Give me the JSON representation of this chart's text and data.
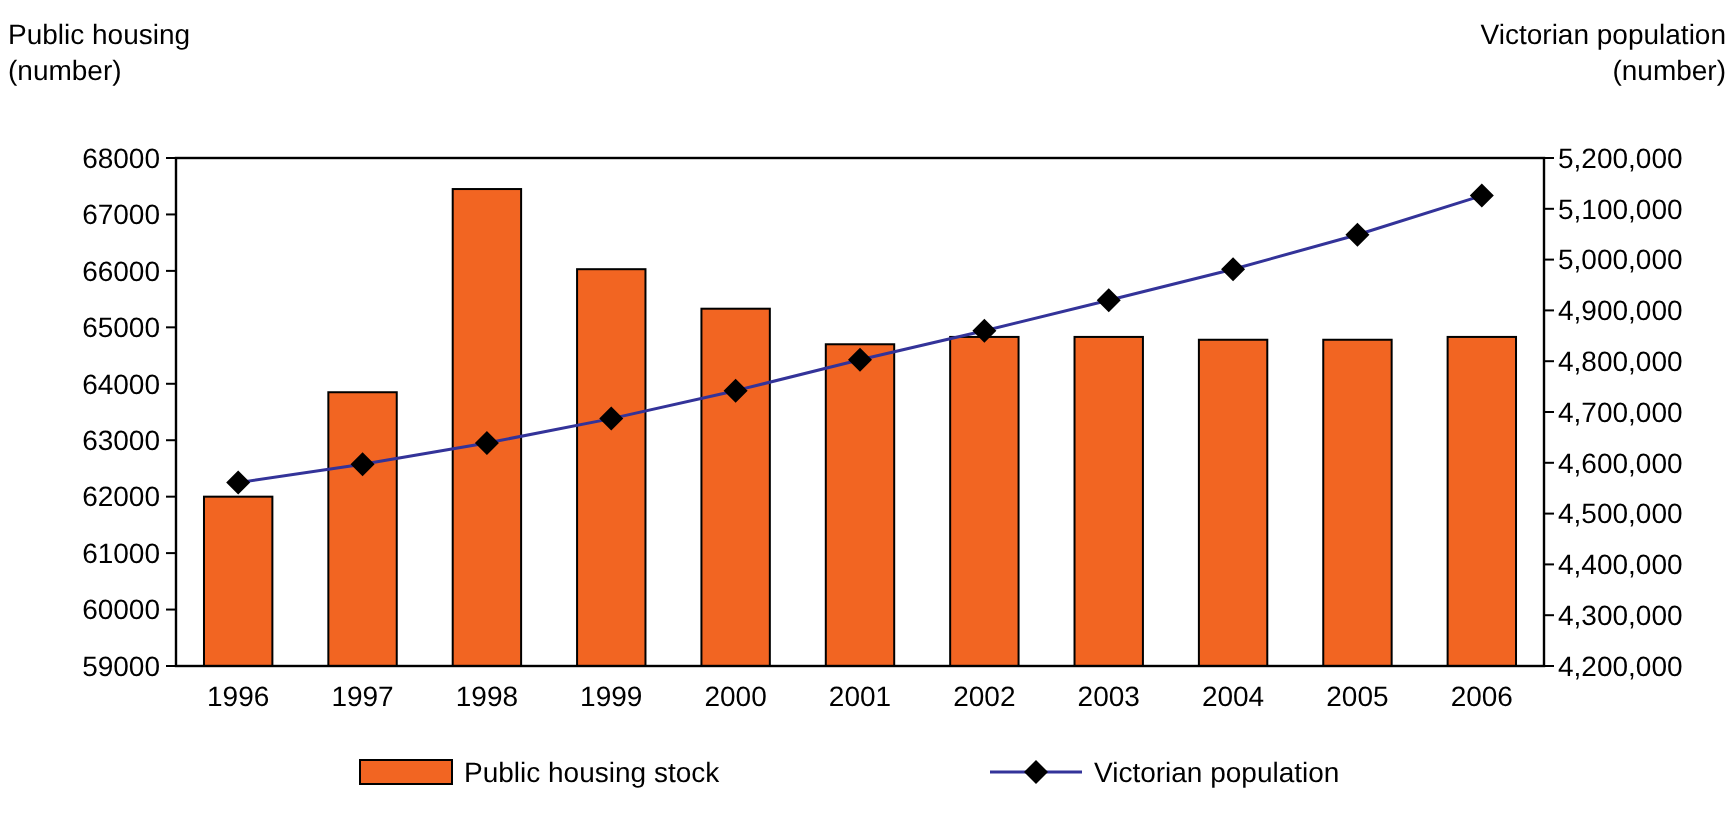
{
  "chart_data": {
    "type": "bar",
    "categories": [
      "1996",
      "1997",
      "1998",
      "1999",
      "2000",
      "2001",
      "2002",
      "2003",
      "2004",
      "2005",
      "2006"
    ],
    "ylabel": "Public housing\n(number)",
    "y2label": "Victorian population\n(number)",
    "series": [
      {
        "name": "Public housing stock",
        "color": "#f26522",
        "values": [
          62000,
          63850,
          67450,
          66030,
          65330,
          64700,
          64830,
          64830,
          64780,
          64780,
          64830
        ]
      },
      {
        "name": "Victorian population",
        "type": "line",
        "axis": "y2",
        "color": "#333399",
        "marker": "diamond",
        "values": [
          4561000,
          4597000,
          4639000,
          4687000,
          4742000,
          4803000,
          4860000,
          4920000,
          4981000,
          5049000,
          5126000
        ]
      }
    ],
    "ylim": [
      59000,
      68000
    ],
    "yticks": [
      59000,
      60000,
      61000,
      62000,
      63000,
      64000,
      65000,
      66000,
      67000,
      68000
    ],
    "y2lim": [
      4200000,
      5200000
    ],
    "y2ticks": [
      {
        "value": 4200000,
        "label": "4,200,000"
      },
      {
        "value": 4300000,
        "label": "4,300,000"
      },
      {
        "value": 4400000,
        "label": "4,400,000"
      },
      {
        "value": 4500000,
        "label": "4,500,000"
      },
      {
        "value": 4600000,
        "label": "4,600,000"
      },
      {
        "value": 4700000,
        "label": "4,700,000"
      },
      {
        "value": 4800000,
        "label": "4,800,000"
      },
      {
        "value": 4900000,
        "label": "4,900,000"
      },
      {
        "value": 5000000,
        "label": "5,000,000"
      },
      {
        "value": 5100000,
        "label": "5,100,000"
      },
      {
        "value": 5200000,
        "label": "5,200,000"
      }
    ],
    "legend": "bottom",
    "grid": false
  }
}
